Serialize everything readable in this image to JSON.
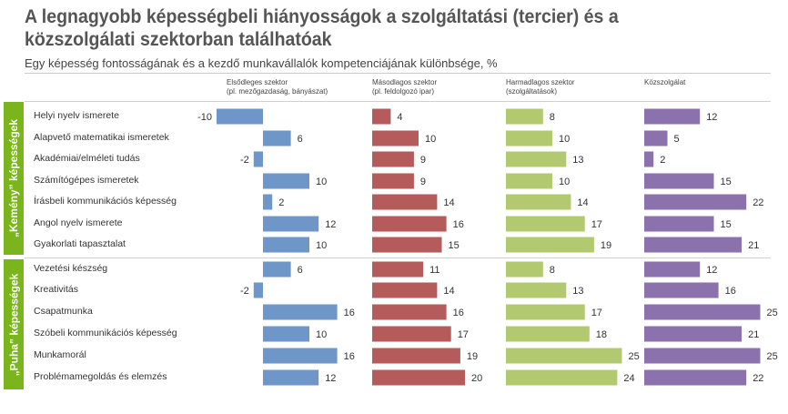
{
  "chart_data": {
    "type": "bar",
    "title": "A legnagyobb képességbeli hiányosságok a szolgáltatási (tercier) és a közszolgálati szektorban találhatóak",
    "subtitle": "Egy képesség fontosságának és a kezdő munkavállalók kompetenciájának különbsége, %",
    "groups": [
      {
        "label": "„Kemény” képességek",
        "rows": [
          0,
          1,
          2,
          3,
          4,
          5,
          6
        ]
      },
      {
        "label": "„Puha” képességek",
        "rows": [
          7,
          8,
          9,
          10,
          11,
          12
        ]
      }
    ],
    "categories": [
      "Helyi nyelv ismerete",
      "Alapvető matematikai ismeretek",
      "Akadémiai/elméleti tudás",
      "Számítógépes ismeretek",
      "Írásbeli kommunikációs képesség",
      "Angol nyelv ismerete",
      "Gyakorlati tapasztalat",
      "Vezetési készség",
      "Kreativitás",
      "Csapatmunka",
      "Szóbeli kommunikációs képesség",
      "Munkamorál",
      "Problémamegoldás és elemzés"
    ],
    "series": [
      {
        "name": "Elsődleges szektor",
        "sub": "(pl. mezőgazdaság, bányászat)",
        "color": "#6f96c8",
        "values": [
          -10,
          6,
          -2,
          10,
          2,
          12,
          10,
          6,
          -2,
          16,
          10,
          16,
          12
        ]
      },
      {
        "name": "Másodlagos szektor",
        "sub": "(pl. feldolgozó ipar)",
        "color": "#b55b5b",
        "values": [
          4,
          10,
          9,
          9,
          14,
          16,
          15,
          11,
          14,
          16,
          17,
          19,
          20
        ]
      },
      {
        "name": "Harmadlagos szektor",
        "sub": "(szolgáltatások)",
        "color": "#b3c96f",
        "values": [
          8,
          10,
          13,
          10,
          14,
          17,
          19,
          8,
          13,
          17,
          18,
          25,
          24
        ]
      },
      {
        "name": "Közszolgálat",
        "sub": "",
        "color": "#8b72ad",
        "values": [
          12,
          5,
          2,
          15,
          22,
          15,
          21,
          12,
          16,
          25,
          21,
          25,
          22
        ]
      }
    ]
  }
}
